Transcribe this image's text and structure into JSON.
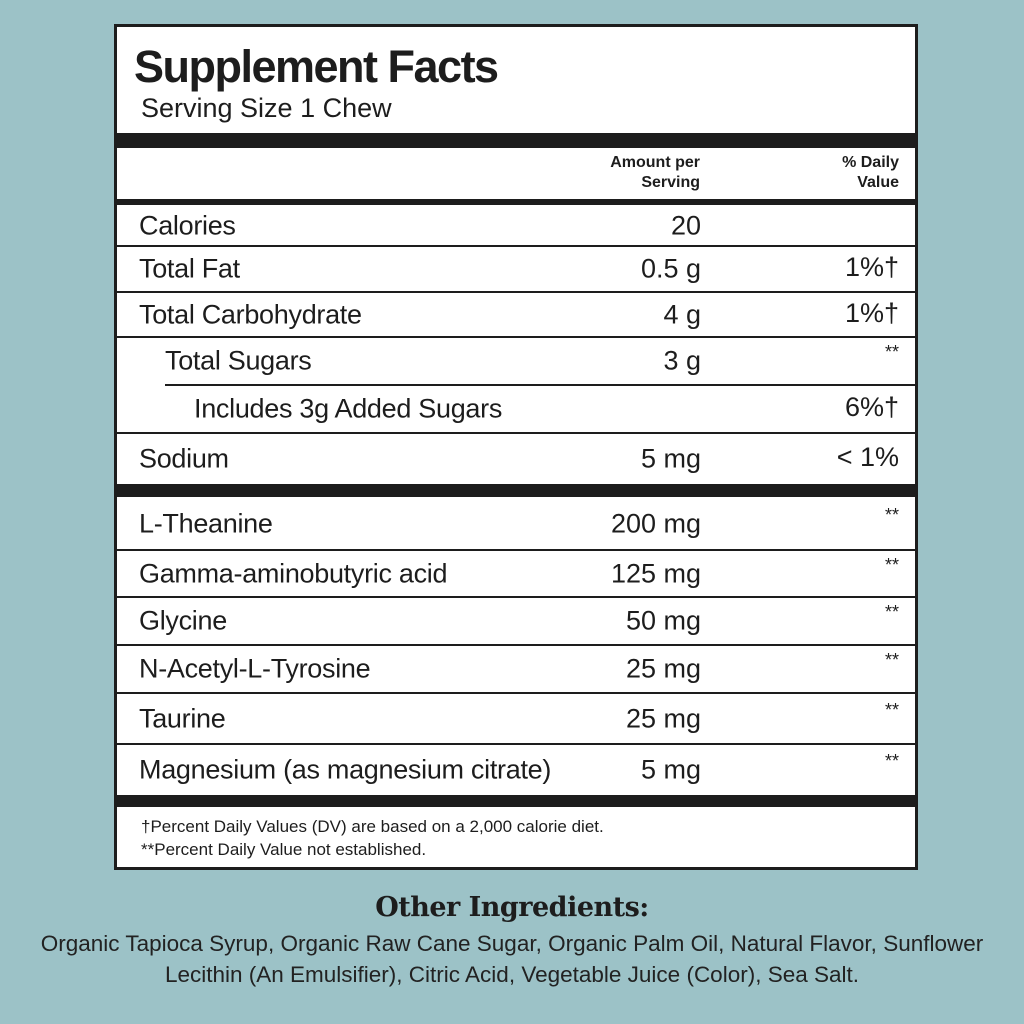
{
  "label": {
    "title": "Supplement Facts",
    "serving_size": "Serving Size 1 Chew",
    "header": {
      "amount": "Amount per Serving",
      "daily_value": "% Daily Value"
    },
    "rows": [
      {
        "name": "Calories",
        "amount": "20",
        "dv": ""
      },
      {
        "name": "Total Fat",
        "amount": "0.5 g",
        "dv": "1%†"
      },
      {
        "name": "Total Carbohydrate",
        "amount": "4 g",
        "dv": "1%†"
      },
      {
        "name": "Total Sugars",
        "amount": "3 g",
        "dv": "**"
      },
      {
        "name": "Includes 3g Added Sugars",
        "amount": "",
        "dv": "6%†"
      },
      {
        "name": "Sodium",
        "amount": "5 mg",
        "dv": "< 1%"
      },
      {
        "name": "L-Theanine",
        "amount": "200 mg",
        "dv": "**"
      },
      {
        "name": "Gamma-aminobutyric acid",
        "amount": "125 mg",
        "dv": "**"
      },
      {
        "name": "Glycine",
        "amount": "50 mg",
        "dv": "**"
      },
      {
        "name": "N-Acetyl-L-Tyrosine",
        "amount": "25 mg",
        "dv": "**"
      },
      {
        "name": "Taurine",
        "amount": "25 mg",
        "dv": "**"
      },
      {
        "name": "Magnesium (as magnesium citrate)",
        "amount": "5 mg",
        "dv": "**"
      }
    ],
    "footnotes": [
      "†Percent Daily Values (DV) are based on a 2,000 calorie diet.",
      "**Percent Daily Value not established."
    ]
  },
  "other_ingredients": {
    "title": "Other Ingredients:",
    "text": "Organic Tapioca Syrup, Organic Raw Cane Sugar, Organic Palm Oil, Natural Flavor, Sunflower Lecithin (An Emulsifier), Citric Acid, Vegetable Juice (Color), Sea Salt."
  },
  "colors": {
    "background": "#9cc2c7",
    "ink": "#1d1d1d",
    "panel": "#ffffff"
  }
}
